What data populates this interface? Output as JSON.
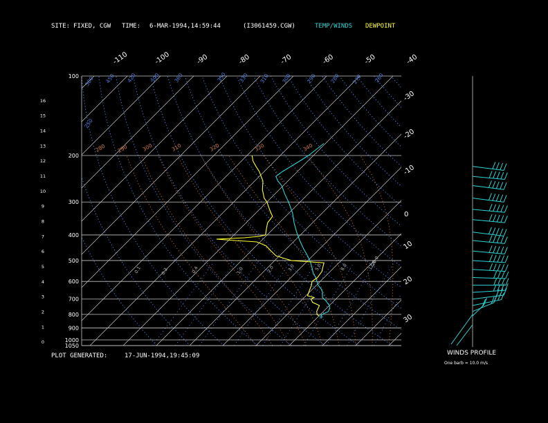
{
  "header": {
    "site_label": "SITE:",
    "site_value": "FIXED, CGW",
    "time_label": "TIME:",
    "time_value": "6-MAR-1994,14:59:44",
    "file": "(I3061459.CGW)",
    "legend_temp": "TEMP/WINDS",
    "legend_dew": "DEWPOINT",
    "legend_temp_color": "#2fd6d6",
    "legend_dew_color": "#ffff30"
  },
  "footer": {
    "generated_label": "PLOT GENERATED:",
    "generated_value": "17-JUN-1994,19:45:09",
    "winds_title": "WINDS PROFILE",
    "barb_note": "One barb = 10.0 m/s"
  },
  "chart_data": {
    "type": "line",
    "pressure_ticks": [
      100,
      200,
      300,
      400,
      500,
      600,
      700,
      800,
      900,
      1000,
      1050
    ],
    "height_ticks_km": [
      0,
      1,
      2,
      3,
      4,
      5,
      6,
      7,
      8,
      9,
      10,
      11,
      12,
      13,
      14,
      15,
      16
    ],
    "top_temp_labels": [
      "-110",
      "-100",
      "-90",
      "-80",
      "-70",
      "-60",
      "-50",
      "-40"
    ],
    "right_temp_labels": [
      "-30",
      "-20",
      "-10",
      "0",
      "10",
      "20",
      "30"
    ],
    "theta_labels": [
      "500",
      "450",
      "420",
      "390",
      "360",
      "350",
      "330",
      "310",
      "300",
      "290",
      "280",
      "270",
      "260",
      "250"
    ],
    "mixing_ratio_labels": [
      "0.1",
      "0.2",
      "0.4",
      "1.0",
      "2.0",
      "3.0",
      "5.0",
      "8.0",
      "12.0",
      "20.0"
    ],
    "theta_e_labels": [
      "280",
      "290",
      "300",
      "310",
      "320",
      "330",
      "340"
    ],
    "temperature_profile": {
      "name": "TEMP/WINDS",
      "points": [
        [
          810,
          0.5
        ],
        [
          800,
          0.5
        ],
        [
          780,
          1.5
        ],
        [
          760,
          1.0
        ],
        [
          740,
          0.0
        ],
        [
          710,
          -2.5
        ],
        [
          690,
          -4.5
        ],
        [
          660,
          -6.0
        ],
        [
          640,
          -7.5
        ],
        [
          620,
          -9.5
        ],
        [
          600,
          -11.0
        ],
        [
          580,
          -12.5
        ],
        [
          560,
          -14.5
        ],
        [
          540,
          -16.0
        ],
        [
          510,
          -18.5
        ],
        [
          480,
          -21.5
        ],
        [
          450,
          -25.0
        ],
        [
          420,
          -28.5
        ],
        [
          390,
          -32.0
        ],
        [
          360,
          -35.5
        ],
        [
          330,
          -39.0
        ],
        [
          300,
          -43.5
        ],
        [
          280,
          -47.0
        ],
        [
          260,
          -50.5
        ],
        [
          250,
          -53.0
        ],
        [
          240,
          -55.0
        ],
        [
          230,
          -54.5
        ],
        [
          220,
          -53.5
        ],
        [
          210,
          -52.5
        ],
        [
          200,
          -51.5
        ],
        [
          190,
          -51.0
        ],
        [
          180,
          -50.5
        ]
      ]
    },
    "dewpoint_profile": {
      "name": "DEWPOINT",
      "points": [
        [
          810,
          0.0
        ],
        [
          800,
          -1.0
        ],
        [
          780,
          -2.0
        ],
        [
          760,
          -2.5
        ],
        [
          740,
          -3.0
        ],
        [
          720,
          -6.0
        ],
        [
          700,
          -7.5
        ],
        [
          690,
          -7.0
        ],
        [
          680,
          -9.5
        ],
        [
          650,
          -10.5
        ],
        [
          620,
          -11.5
        ],
        [
          600,
          -12.5
        ],
        [
          580,
          -12.0
        ],
        [
          550,
          -12.5
        ],
        [
          520,
          -14.0
        ],
        [
          510,
          -14.5
        ],
        [
          500,
          -25.0
        ],
        [
          490,
          -28.0
        ],
        [
          480,
          -31.0
        ],
        [
          460,
          -34.0
        ],
        [
          440,
          -37.0
        ],
        [
          425,
          -41.0
        ],
        [
          420,
          -48.0
        ],
        [
          415,
          -54.0
        ],
        [
          410,
          -46.0
        ],
        [
          405,
          -42.0
        ],
        [
          400,
          -40.5
        ],
        [
          380,
          -42.0
        ],
        [
          360,
          -43.5
        ],
        [
          340,
          -44.0
        ],
        [
          320,
          -47.0
        ],
        [
          300,
          -50.0
        ],
        [
          290,
          -52.0
        ],
        [
          270,
          -55.0
        ],
        [
          250,
          -57.5
        ],
        [
          230,
          -61.5
        ],
        [
          220,
          -64.0
        ],
        [
          210,
          -66.5
        ],
        [
          200,
          -68.5
        ]
      ]
    },
    "winds": {
      "unit": "m/s",
      "barb_value": 10.0,
      "levels": [
        {
          "p": 810,
          "dir": 200,
          "spd": 15
        },
        {
          "p": 780,
          "dir": 220,
          "spd": 20
        },
        {
          "p": 740,
          "dir": 240,
          "spd": 25
        },
        {
          "p": 700,
          "dir": 250,
          "spd": 30
        },
        {
          "p": 660,
          "dir": 260,
          "spd": 35
        },
        {
          "p": 620,
          "dir": 270,
          "spd": 40
        },
        {
          "p": 580,
          "dir": 275,
          "spd": 40
        },
        {
          "p": 540,
          "dir": 280,
          "spd": 45
        },
        {
          "p": 500,
          "dir": 280,
          "spd": 50
        },
        {
          "p": 460,
          "dir": 285,
          "spd": 50
        },
        {
          "p": 420,
          "dir": 285,
          "spd": 50
        },
        {
          "p": 390,
          "dir": 290,
          "spd": 45
        },
        {
          "p": 350,
          "dir": 285,
          "spd": 50
        },
        {
          "p": 320,
          "dir": 285,
          "spd": 45
        },
        {
          "p": 290,
          "dir": 290,
          "spd": 50
        },
        {
          "p": 260,
          "dir": 290,
          "spd": 50
        },
        {
          "p": 240,
          "dir": 285,
          "spd": 45
        },
        {
          "p": 220,
          "dir": 290,
          "spd": 40
        }
      ]
    }
  }
}
